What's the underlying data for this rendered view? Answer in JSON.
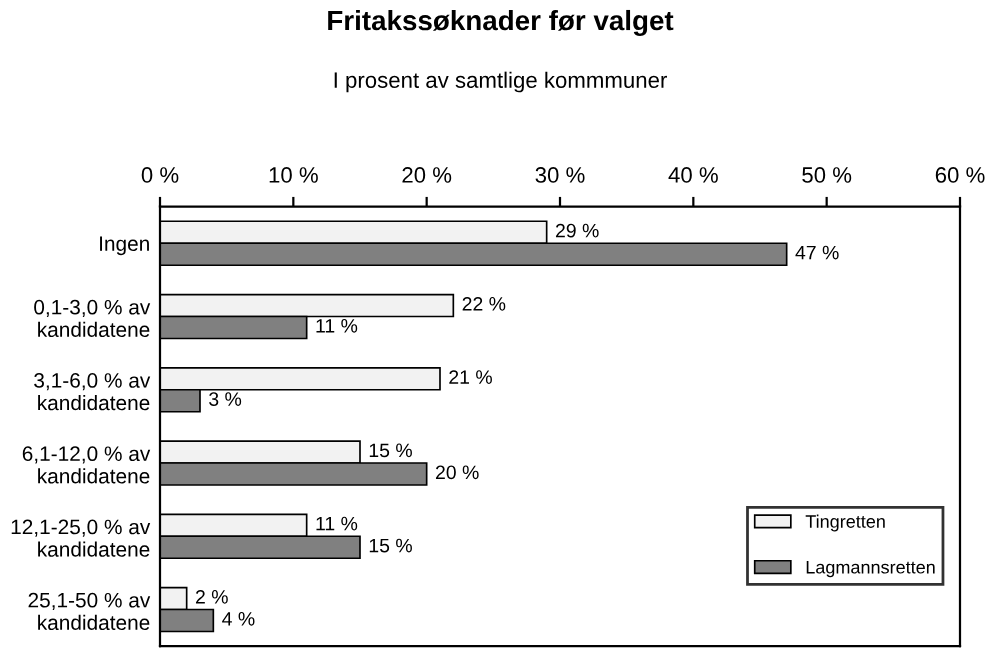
{
  "chart_data": {
    "type": "bar",
    "orientation": "horizontal",
    "title": "Fritakssøknader før valget",
    "subtitle": "I prosent av samtlige kommmuner",
    "categories": [
      "Ingen",
      "0,1-3,0 % av\nkandidatene",
      "3,1-6,0 % av\nkandidatene",
      "6,1-12,0 % av\nkandidatene",
      "12,1-25,0 % av\nkandidatene",
      "25,1-50 % av\nkandidatene"
    ],
    "series": [
      {
        "name": "Tingretten",
        "color": "#f2f2f2",
        "values": [
          29,
          22,
          21,
          15,
          11,
          2
        ],
        "value_labels": [
          "29 %",
          "22 %",
          "21 %",
          "15 %",
          "11 %",
          "2 %"
        ]
      },
      {
        "name": "Lagmannsretten",
        "color": "#808080",
        "values": [
          47,
          11,
          3,
          20,
          15,
          4
        ],
        "value_labels": [
          "47 %",
          "11 %",
          "3 %",
          "20 %",
          "15 %",
          "4 %"
        ]
      }
    ],
    "xlim": [
      0,
      60
    ],
    "xticks": [
      {
        "value": 0,
        "label": "0 %"
      },
      {
        "value": 10,
        "label": "10 %"
      },
      {
        "value": 20,
        "label": "20 %"
      },
      {
        "value": 30,
        "label": "30 %"
      },
      {
        "value": 40,
        "label": "40 %"
      },
      {
        "value": 50,
        "label": "50 %"
      },
      {
        "value": 60,
        "label": "60 %"
      }
    ],
    "grid": false,
    "legend": "bottom right"
  }
}
